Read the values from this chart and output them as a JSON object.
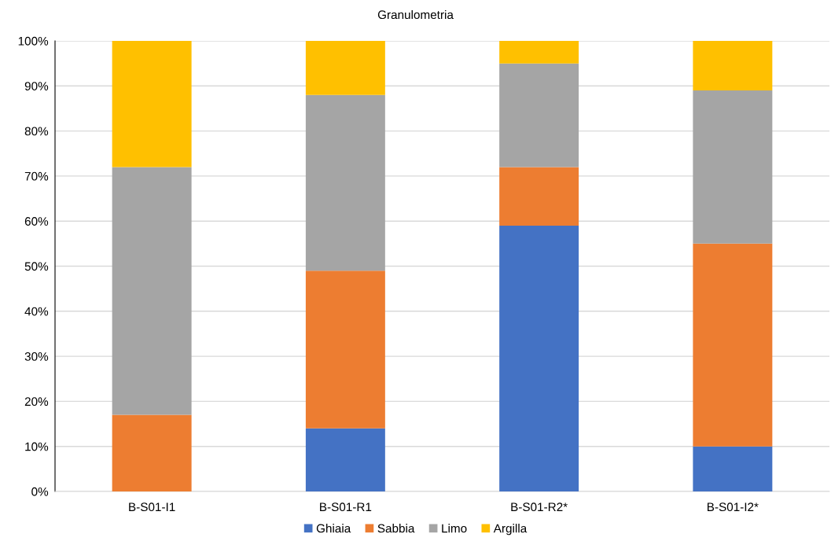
{
  "chart_data": {
    "type": "bar",
    "title": "Granulometria",
    "stacked": true,
    "categories": [
      "B-S01-I1",
      "B-S01-R1",
      "B-S01-R2*",
      "B-S01-I2*"
    ],
    "series": [
      {
        "name": "Ghiaia",
        "color": "#4472c4",
        "values": [
          0,
          14,
          59,
          10
        ]
      },
      {
        "name": "Sabbia",
        "color": "#ed7d31",
        "values": [
          17,
          35,
          13,
          45
        ]
      },
      {
        "name": "Limo",
        "color": "#a5a5a5",
        "values": [
          55,
          39,
          23,
          34
        ]
      },
      {
        "name": "Argilla",
        "color": "#ffc000",
        "values": [
          28,
          12,
          5,
          11
        ]
      }
    ],
    "ylim": [
      0,
      100
    ],
    "yticks": [
      {
        "value": 0,
        "label": "0%"
      },
      {
        "value": 10,
        "label": "10%"
      },
      {
        "value": 20,
        "label": "20%"
      },
      {
        "value": 30,
        "label": "30%"
      },
      {
        "value": 40,
        "label": "40%"
      },
      {
        "value": 50,
        "label": "50%"
      },
      {
        "value": 60,
        "label": "60%"
      },
      {
        "value": 70,
        "label": "70%"
      },
      {
        "value": 80,
        "label": "80%"
      },
      {
        "value": 90,
        "label": "90%"
      },
      {
        "value": 100,
        "label": "100%"
      }
    ],
    "grid": "y",
    "legend": "bottom"
  }
}
